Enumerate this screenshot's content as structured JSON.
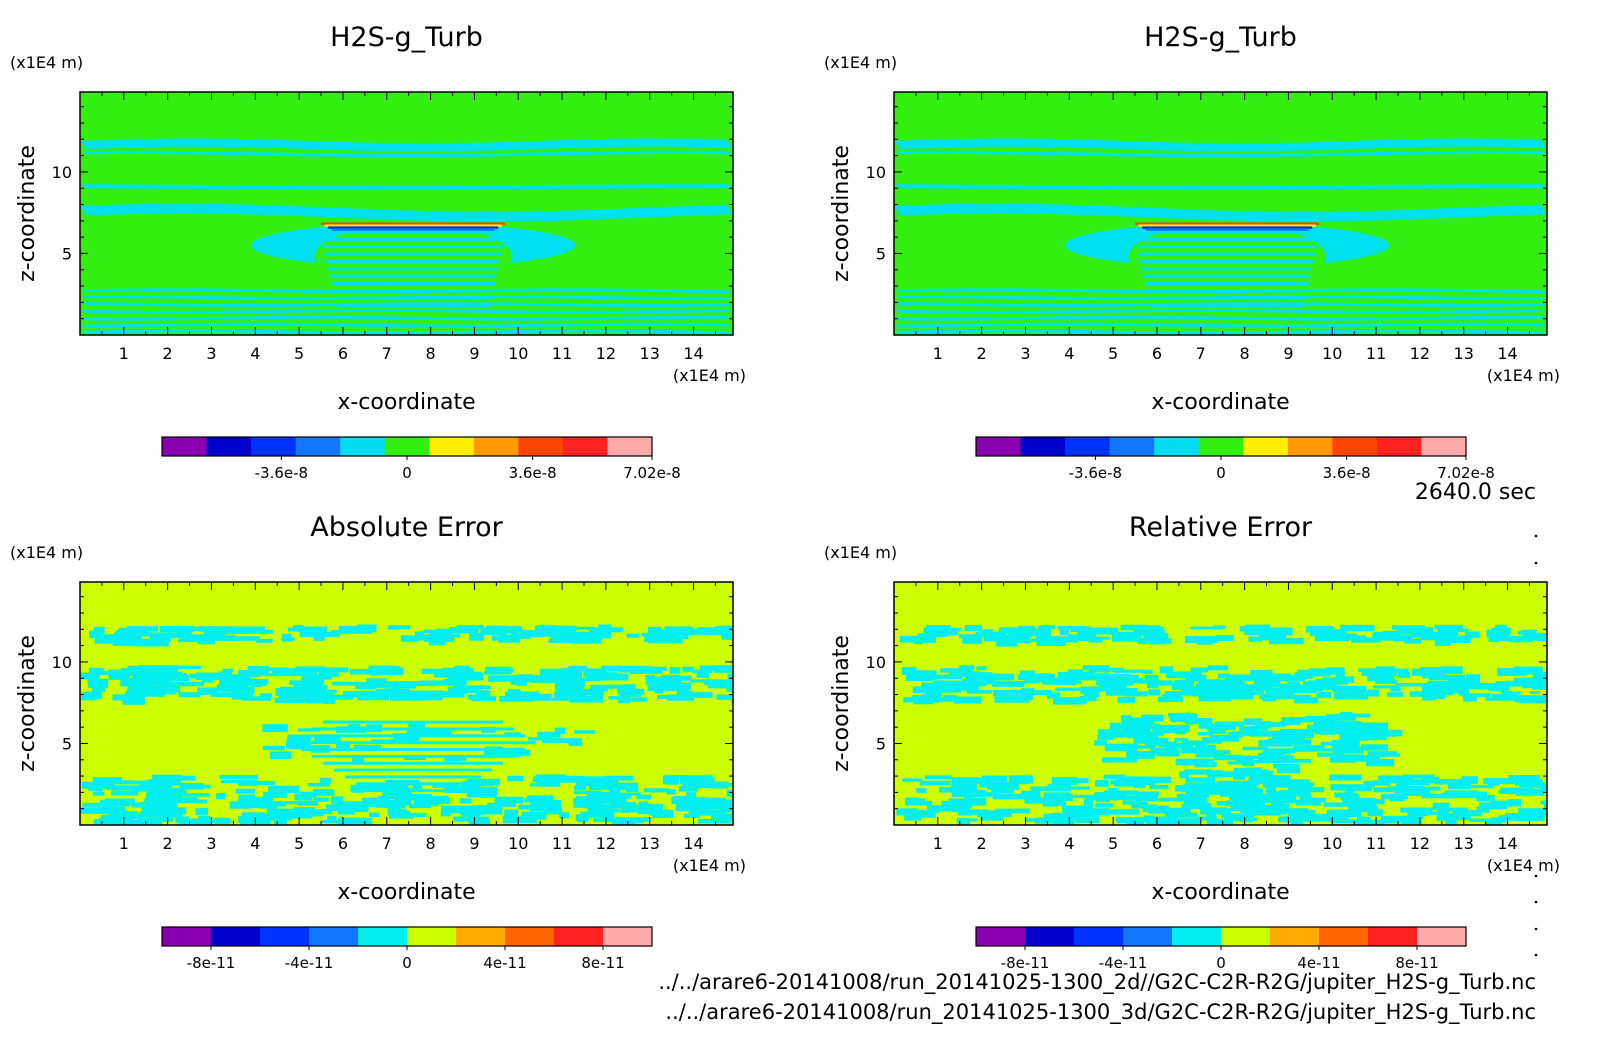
{
  "time_label": "2640.0 sec",
  "footer": {
    "line1": "../../arare6-20141008/run_20141025-1300_2d//G2C-C2R-R2G/jupiter_H2S-g_Turb.nc",
    "line2": "../../arare6-20141008/run_20141025-1300_3d/G2C-C2R-R2G/jupiter_H2S-g_Turb.nc"
  },
  "colors": {
    "field_bg": "#33ee11",
    "field_band": "#00e0ee",
    "error_bg": "#ccff00",
    "error_band": "#00eeee",
    "scale_field": [
      "#8a00b0",
      "#0000cc",
      "#0033ff",
      "#1177ff",
      "#00ddee",
      "#33ee11",
      "#ffee00",
      "#ff9900",
      "#ff4400",
      "#ff2222",
      "#ffaaaa"
    ],
    "scale_error": [
      "#8a00b0",
      "#0000cc",
      "#0033ff",
      "#1177ff",
      "#00eeee",
      "#ccff00",
      "#ffaa00",
      "#ff6600",
      "#ff2222",
      "#ffaaaa"
    ]
  },
  "chart_data": [
    {
      "type": "heatmap",
      "title": "H2S-g_Turb",
      "xlabel": "x-coordinate",
      "ylabel": "z-coordinate",
      "x_unit": "(x1E4 m)",
      "y_unit": "(x1E4 m)",
      "xlim": [
        0,
        14.9
      ],
      "ylim": [
        0,
        14.9
      ],
      "x_ticks": [
        "1",
        "2",
        "3",
        "4",
        "5",
        "6",
        "7",
        "8",
        "9",
        "10",
        "11",
        "12",
        "13",
        "14"
      ],
      "y_ticks": [
        "5",
        "10"
      ],
      "colorbar_ticks": [
        "-3.6e-8",
        "0",
        "3.6e-8",
        "7.02e-8"
      ],
      "colorbar_range": [
        -7.02e-08,
        7.02e-08
      ]
    },
    {
      "type": "heatmap",
      "title": "H2S-g_Turb",
      "xlabel": "x-coordinate",
      "ylabel": "z-coordinate",
      "x_unit": "(x1E4 m)",
      "y_unit": "(x1E4 m)",
      "xlim": [
        0,
        14.9
      ],
      "ylim": [
        0,
        14.9
      ],
      "x_ticks": [
        "1",
        "2",
        "3",
        "4",
        "5",
        "6",
        "7",
        "8",
        "9",
        "10",
        "11",
        "12",
        "13",
        "14"
      ],
      "y_ticks": [
        "5",
        "10"
      ],
      "colorbar_ticks": [
        "-3.6e-8",
        "0",
        "3.6e-8",
        "7.02e-8"
      ],
      "colorbar_range": [
        -7.02e-08,
        7.02e-08
      ]
    },
    {
      "type": "heatmap",
      "title": "Absolute Error",
      "xlabel": "x-coordinate",
      "ylabel": "z-coordinate",
      "x_unit": "(x1E4 m)",
      "y_unit": "(x1E4 m)",
      "xlim": [
        0,
        14.9
      ],
      "ylim": [
        0,
        14.9
      ],
      "x_ticks": [
        "1",
        "2",
        "3",
        "4",
        "5",
        "6",
        "7",
        "8",
        "9",
        "10",
        "11",
        "12",
        "13",
        "14"
      ],
      "y_ticks": [
        "5",
        "10"
      ],
      "colorbar_ticks": [
        "-8e-11",
        "-4e-11",
        "0",
        "4e-11",
        "8e-11"
      ],
      "colorbar_range": [
        -1e-10,
        1e-10
      ]
    },
    {
      "type": "heatmap",
      "title": "Relative Error",
      "xlabel": "x-coordinate",
      "ylabel": "z-coordinate",
      "x_unit": "(x1E4 m)",
      "y_unit": "(x1E4 m)",
      "xlim": [
        0,
        14.9
      ],
      "ylim": [
        0,
        14.9
      ],
      "x_ticks": [
        "1",
        "2",
        "3",
        "4",
        "5",
        "6",
        "7",
        "8",
        "9",
        "10",
        "11",
        "12",
        "13",
        "14"
      ],
      "y_ticks": [
        "5",
        "10"
      ],
      "colorbar_ticks": [
        "-8e-11",
        "-4e-11",
        "0",
        "4e-11",
        "8e-11"
      ],
      "colorbar_range": [
        -1e-10,
        1e-10
      ]
    }
  ]
}
